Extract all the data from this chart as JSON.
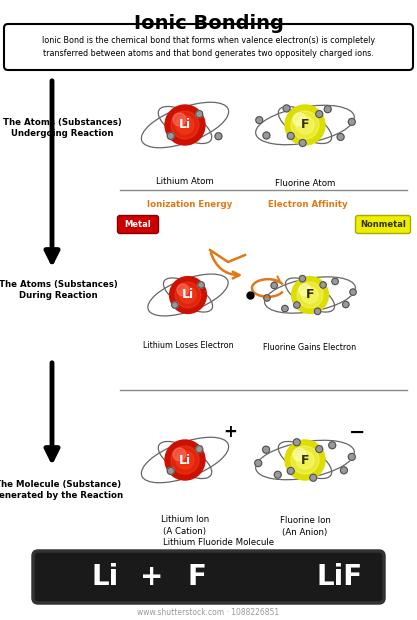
{
  "title": "Ionic Bonding",
  "definition": "Ionic Bond is the chemical bond that forms when valence electron(s) is completely\ntransferred between atoms and that bond generates two oppositely charged ions.",
  "bg_color": "#ffffff",
  "title_fontsize": 14,
  "section1_label": "The Atoms (Substances)\nUndergoing Reaction",
  "section2_label": "The Atoms (Substances)\nDuring Reaction",
  "section3_label": "The Molecule (Substance)\nGenerated by the Reaction",
  "lithium_color": "#cc1100",
  "fluorine_color": "#dddd00",
  "electron_color": "#999999",
  "orbit_color": "#666666",
  "orange_color": "#e07818",
  "metal_color": "#cc0000",
  "nonmetal_color": "#eeee00",
  "bottom_bg": "#1a1a1a",
  "shutterstock_text": "www.shutterstock.com · 1088226851"
}
